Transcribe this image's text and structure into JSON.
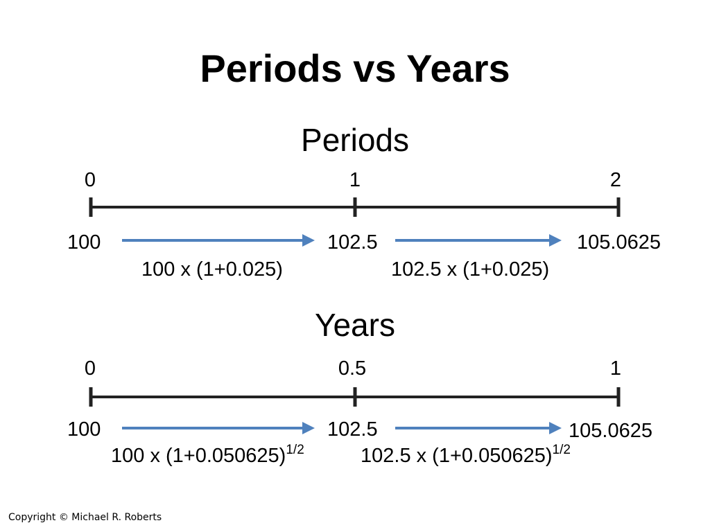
{
  "title": "Periods vs Years",
  "colors": {
    "arrow": "#4f81bd",
    "line": "#222222",
    "text": "#000000"
  },
  "sections": [
    {
      "heading": "Periods",
      "ticks": [
        "0",
        "1",
        "2"
      ],
      "values": [
        "100",
        "102.5",
        "105.0625"
      ],
      "formulas": [
        {
          "text": "100 x (1+0.025)",
          "exp": ""
        },
        {
          "text": "102.5 x (1+0.025)",
          "exp": ""
        }
      ]
    },
    {
      "heading": "Years",
      "ticks": [
        "0",
        "0.5",
        "1"
      ],
      "values": [
        "100",
        "102.5",
        "105.0625"
      ],
      "formulas": [
        {
          "text": "100 x (1+0.050625)",
          "exp": "1/2"
        },
        {
          "text": "102.5 x (1+0.050625)",
          "exp": "1/2"
        }
      ]
    }
  ],
  "copyright": "Copyright © Michael R. Roberts"
}
